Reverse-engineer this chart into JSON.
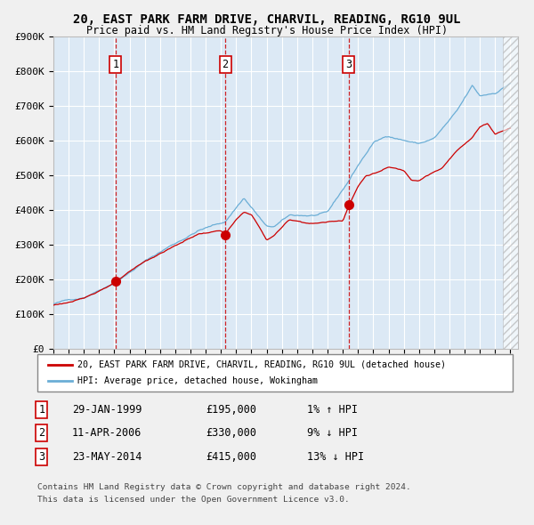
{
  "title1": "20, EAST PARK FARM DRIVE, CHARVIL, READING, RG10 9UL",
  "title2": "Price paid vs. HM Land Registry's House Price Index (HPI)",
  "legend_property": "20, EAST PARK FARM DRIVE, CHARVIL, READING, RG10 9UL (detached house)",
  "legend_hpi": "HPI: Average price, detached house, Wokingham",
  "sales": [
    {
      "label": "1",
      "date_str": "29-JAN-1999",
      "date_x": 1999.08,
      "price": 195000,
      "hpi_rel": "1% ↑ HPI"
    },
    {
      "label": "2",
      "date_str": "11-APR-2006",
      "date_x": 2006.28,
      "price": 330000,
      "hpi_rel": "9% ↓ HPI"
    },
    {
      "label": "3",
      "date_str": "23-MAY-2014",
      "date_x": 2014.39,
      "price": 415000,
      "hpi_rel": "13% ↓ HPI"
    }
  ],
  "ylabel_ticks": [
    "£0",
    "£100K",
    "£200K",
    "£300K",
    "£400K",
    "£500K",
    "£600K",
    "£700K",
    "£800K",
    "£900K"
  ],
  "ylim": [
    0,
    900000
  ],
  "xlim_start": 1995.0,
  "xlim_end": 2025.5,
  "hpi_color": "#6baed6",
  "property_color": "#cc0000",
  "bg_color": "#dce9f5",
  "grid_color": "#ffffff",
  "vline_color": "#cc0000",
  "footer1": "Contains HM Land Registry data © Crown copyright and database right 2024.",
  "footer2": "This data is licensed under the Open Government Licence v3.0."
}
